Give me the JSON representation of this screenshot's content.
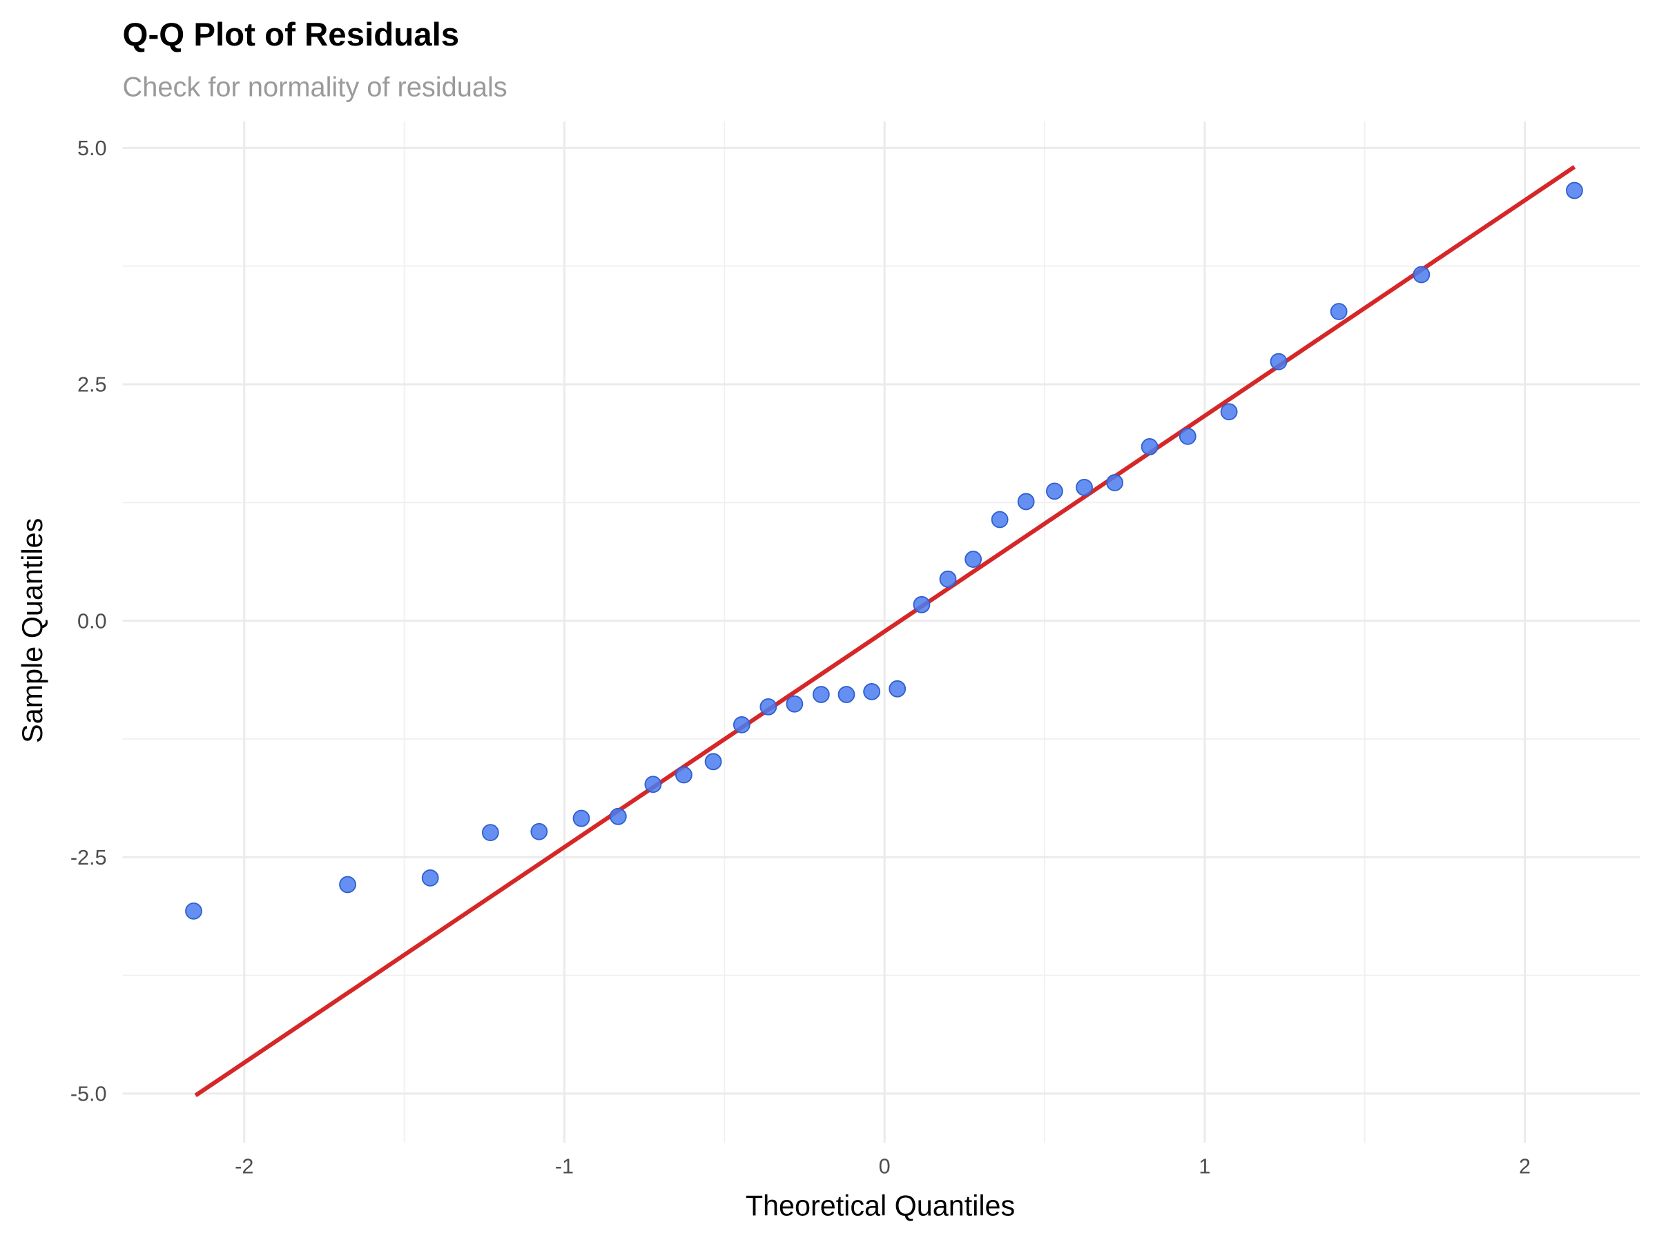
{
  "chart_data": {
    "type": "scatter",
    "title": "Q-Q Plot of Residuals",
    "subtitle": "Check for normality of residuals",
    "xlabel": "Theoretical Quantiles",
    "ylabel": "Sample Quantiles",
    "xlim": [
      -2.38,
      2.36
    ],
    "ylim": [
      -5.52,
      5.28
    ],
    "xticks": [
      -2,
      -1,
      0,
      1,
      2
    ],
    "xtick_labels": [
      "-2",
      "-1",
      "0",
      "1",
      "2"
    ],
    "yticks": [
      -5,
      -2.5,
      0,
      2.5,
      5
    ],
    "ytick_labels": [
      "-5.0",
      "-2.5",
      "0.0",
      "2.5",
      "5.0"
    ],
    "grid": true,
    "points": {
      "color": "#4a7cf0",
      "x": [
        -2.158,
        -1.677,
        -1.419,
        -1.231,
        -1.079,
        -0.947,
        -0.832,
        -0.723,
        -0.627,
        -0.535,
        -0.446,
        -0.363,
        -0.281,
        -0.198,
        -0.119,
        -0.04,
        0.04,
        0.116,
        0.198,
        0.277,
        0.36,
        0.442,
        0.531,
        0.624,
        0.719,
        0.828,
        0.947,
        1.076,
        1.231,
        1.419,
        1.677,
        2.155
      ],
      "y": [
        -3.07,
        -2.79,
        -2.72,
        -2.24,
        -2.23,
        -2.09,
        -2.07,
        -1.73,
        -1.63,
        -1.49,
        -1.1,
        -0.91,
        -0.88,
        -0.78,
        -0.78,
        -0.75,
        -0.72,
        0.17,
        0.44,
        0.65,
        1.07,
        1.26,
        1.37,
        1.41,
        1.46,
        1.84,
        1.95,
        2.21,
        2.74,
        3.27,
        3.66,
        4.55
      ]
    },
    "reference_line": {
      "color": "#d62728",
      "x": [
        -2.152,
        2.155
      ],
      "y": [
        -5.02,
        4.8
      ]
    }
  }
}
